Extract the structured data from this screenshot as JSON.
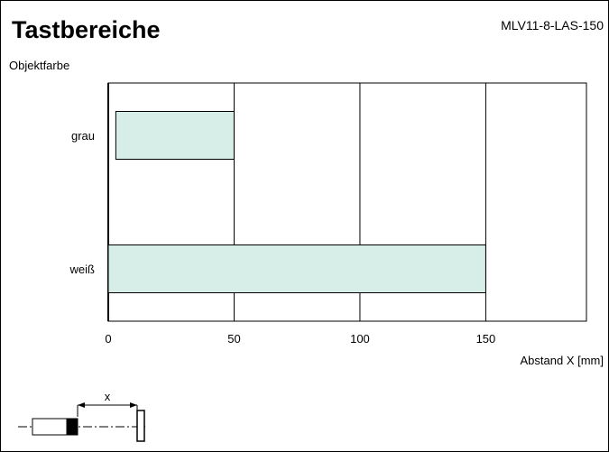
{
  "header": {
    "title": "Tastbereiche",
    "model": "MLV11-8-LAS-150"
  },
  "chart_data": {
    "type": "bar",
    "orientation": "horizontal",
    "title": "Tastbereiche",
    "ylabel": "Objektfarbe",
    "xlabel": "Abstand X [mm]",
    "xlim": [
      0,
      190
    ],
    "xticks": [
      0,
      50,
      100,
      150
    ],
    "grid": true,
    "bar_color": "#d6ede8",
    "categories": [
      "grau",
      "weiß"
    ],
    "ranges": [
      {
        "category": "grau",
        "start": 3,
        "end": 50
      },
      {
        "category": "weiß",
        "start": 0,
        "end": 150
      }
    ]
  },
  "diagram": {
    "distance_label": "x"
  }
}
